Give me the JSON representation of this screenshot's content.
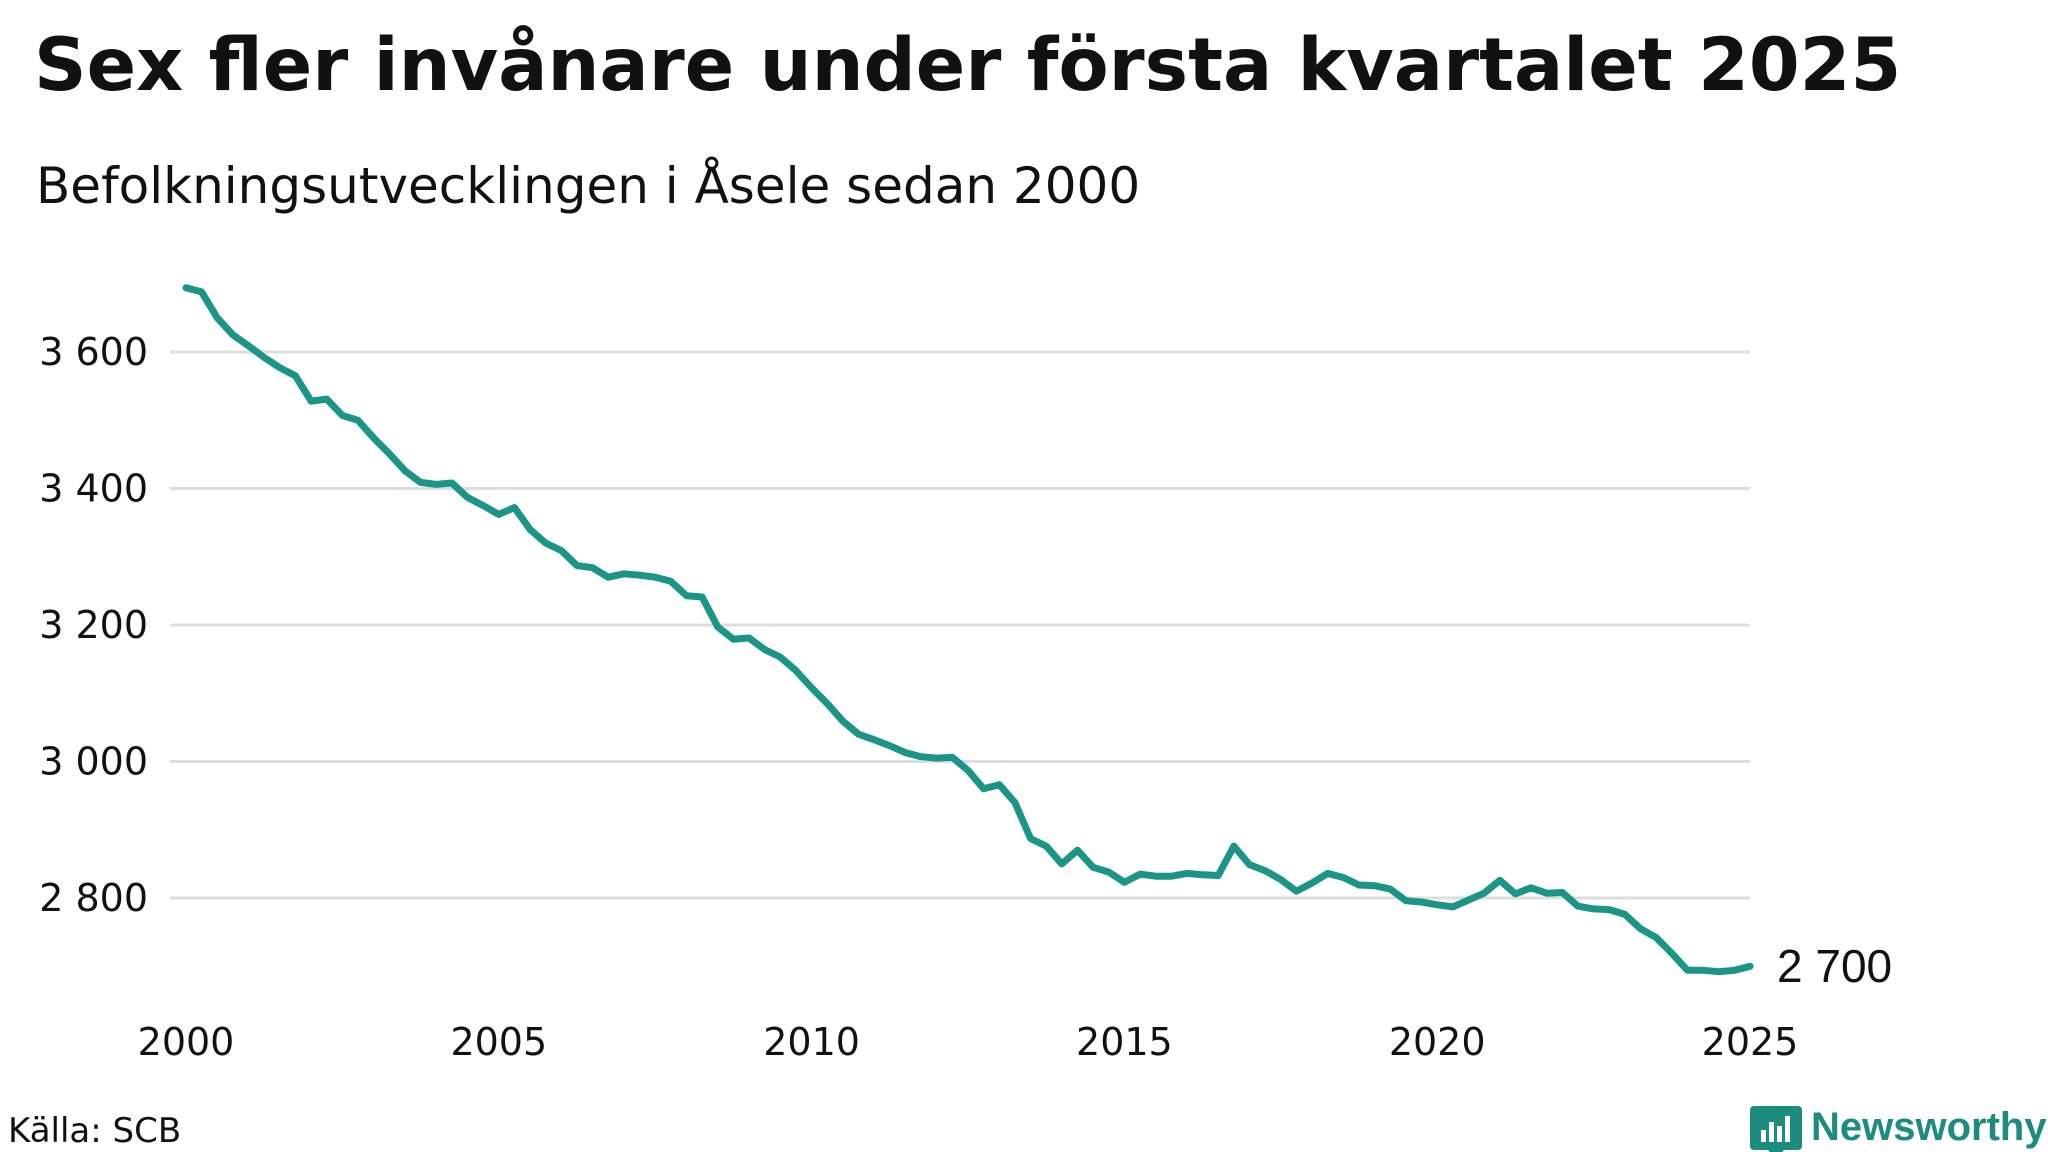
{
  "colors": {
    "line": "#1a9586",
    "grid": "#dedede",
    "brand": "#1c8c7e"
  },
  "footer": {
    "source": "Källa: SCB",
    "brand_name": "Newsworthy",
    "brand_icon": "bar-chart-bubble-icon"
  },
  "chart_data": {
    "type": "line",
    "title": "Sex fler invånare under första kvartalet 2025",
    "subtitle": "Befolkningsutvecklingen i Åsele sedan 2000",
    "xlabel": "",
    "ylabel": "",
    "xlim": [
      2000,
      2025
    ],
    "ylim": [
      2700,
      3700
    ],
    "grid": true,
    "legend": "none",
    "x_ticks": [
      {
        "value": 2000,
        "label": "2000"
      },
      {
        "value": 2005,
        "label": "2005"
      },
      {
        "value": 2010,
        "label": "2010"
      },
      {
        "value": 2015,
        "label": "2015"
      },
      {
        "value": 2020,
        "label": "2020"
      },
      {
        "value": 2025,
        "label": "2025"
      }
    ],
    "y_ticks": [
      {
        "value": 2800,
        "label": "2 800"
      },
      {
        "value": 3000,
        "label": "3 000"
      },
      {
        "value": 3200,
        "label": "3 200"
      },
      {
        "value": 3400,
        "label": "3 400"
      },
      {
        "value": 3600,
        "label": "3 600"
      }
    ],
    "end_label": "2 700",
    "series": [
      {
        "x": [
          2000.0,
          2000.25,
          2000.5,
          2000.75,
          2001.0,
          2001.25,
          2001.5,
          2001.75,
          2002.0,
          2002.25,
          2002.5,
          2002.75,
          2003.0,
          2003.25,
          2003.5,
          2003.75,
          2004.0,
          2004.25,
          2004.5,
          2004.75,
          2005.0,
          2005.25,
          2005.5,
          2005.75,
          2006.0,
          2006.25,
          2006.5,
          2006.75,
          2007.0,
          2007.25,
          2007.5,
          2007.75,
          2008.0,
          2008.25,
          2008.5,
          2008.75,
          2009.0,
          2009.25,
          2009.5,
          2009.75,
          2010.0,
          2010.25,
          2010.5,
          2010.75,
          2011.0,
          2011.25,
          2011.5,
          2011.75,
          2012.0,
          2012.25,
          2012.5,
          2012.75,
          2013.0,
          2013.25,
          2013.5,
          2013.75,
          2014.0,
          2014.25,
          2014.5,
          2014.75,
          2015.0,
          2015.25,
          2015.5,
          2015.75,
          2016.0,
          2016.25,
          2016.5,
          2016.75,
          2017.0,
          2017.25,
          2017.5,
          2017.75,
          2018.0,
          2018.25,
          2018.5,
          2018.75,
          2019.0,
          2019.25,
          2019.5,
          2019.75,
          2020.0,
          2020.25,
          2020.5,
          2020.75,
          2021.0,
          2021.25,
          2021.5,
          2021.75,
          2022.0,
          2022.25,
          2022.5,
          2022.75,
          2023.0,
          2023.25,
          2023.5,
          2023.75,
          2024.0,
          2024.25,
          2024.5,
          2024.75,
          2025.0
        ],
        "values": [
          3694,
          3688,
          3650,
          3625,
          3609,
          3592,
          3577,
          3565,
          3528,
          3531,
          3507,
          3500,
          3474,
          3451,
          3426,
          3409,
          3406,
          3408,
          3387,
          3375,
          3362,
          3372,
          3340,
          3320,
          3309,
          3287,
          3284,
          3270,
          3275,
          3273,
          3270,
          3264,
          3243,
          3241,
          3197,
          3179,
          3181,
          3164,
          3153,
          3133,
          3108,
          3085,
          3059,
          3040,
          3032,
          3023,
          3013,
          3007,
          3005,
          3006,
          2987,
          2960,
          2966,
          2940,
          2887,
          2876,
          2850,
          2870,
          2845,
          2838,
          2823,
          2835,
          2832,
          2832,
          2836,
          2834,
          2833,
          2876,
          2849,
          2840,
          2827,
          2810,
          2822,
          2836,
          2830,
          2819,
          2818,
          2813,
          2796,
          2794,
          2790,
          2787,
          2797,
          2807,
          2826,
          2806,
          2815,
          2807,
          2808,
          2788,
          2784,
          2783,
          2776,
          2755,
          2742,
          2719,
          2694,
          2694,
          2692,
          2694,
          2700
        ]
      }
    ]
  }
}
